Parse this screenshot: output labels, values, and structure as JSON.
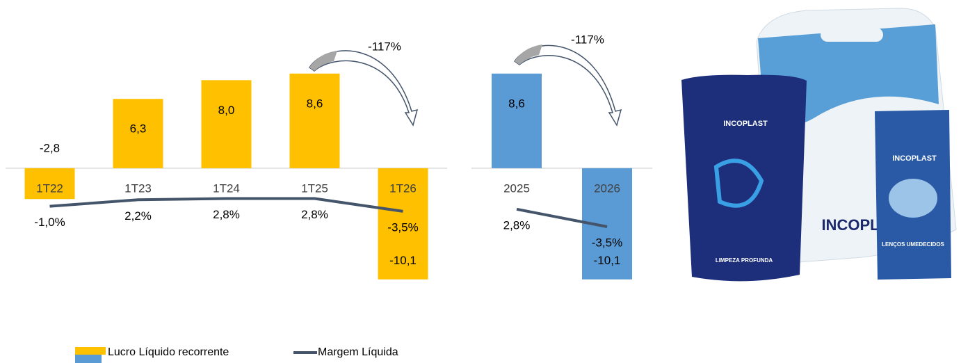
{
  "chart_data": [
    {
      "type": "bar",
      "categories": [
        "1T22",
        "1T23",
        "1T24",
        "1T25",
        "1T26"
      ],
      "series": [
        {
          "name": "Lucro Líquido recorrente",
          "color": "#FFC000",
          "values": [
            -2.8,
            6.3,
            8.0,
            8.6,
            -10.1
          ],
          "value_labels": [
            "-2,8",
            "6,3",
            "8,0",
            "8,6",
            "-10,1"
          ]
        },
        {
          "name": "Margem Líquida",
          "color": "#44546A",
          "axis": "y2",
          "values": [
            -1.0,
            2.2,
            2.8,
            2.8,
            -3.5
          ],
          "value_labels": [
            "-1,0%",
            "2,2%",
            "2,8%",
            "2,8%",
            "-3,5%"
          ]
        }
      ],
      "ylim": [
        -11,
        12
      ],
      "y2lim": [
        -42,
        83
      ],
      "annotation": "-117%",
      "legend": "bottom-left"
    },
    {
      "type": "bar",
      "categories": [
        "2025",
        "2026"
      ],
      "series": [
        {
          "color": "#5B9BD5",
          "values": [
            8.6,
            -10.1
          ],
          "value_labels": [
            "8,6",
            "-10,1"
          ]
        },
        {
          "color": "#44546A",
          "axis": "y2",
          "values": [
            2.8,
            -3.5
          ],
          "value_labels": [
            "2,8%",
            "-3,5%"
          ]
        }
      ],
      "ylim": [
        -11,
        12
      ],
      "y2lim": [
        -26,
        65
      ],
      "annotation": "-117%"
    }
  ],
  "product_image": {
    "texts": [
      "INCOPLAST",
      "INCOPLAST",
      "INCOPLAST",
      "LIMPEZA PROFUNDA",
      "LENÇOS UMEDECIDOS"
    ]
  }
}
